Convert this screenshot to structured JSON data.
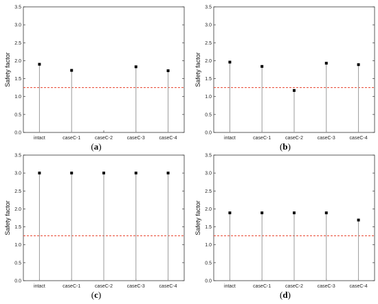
{
  "chart_data": [
    {
      "type": "scatter",
      "panel_label": "(a)",
      "panel_letter": "a",
      "ylabel": "Safety factor",
      "ylim": [
        0.0,
        3.5
      ],
      "yticks": [
        "0.0",
        "0.5",
        "1.0",
        "1.5",
        "2.0",
        "2.5",
        "3.0",
        "3.5"
      ],
      "categories": [
        "intact",
        "caseC-1",
        "caseC-2",
        "caseC-3",
        "caseC-4"
      ],
      "values": [
        1.9,
        1.73,
        null,
        1.83,
        1.72
      ],
      "reference_line": 1.25,
      "reference_color": "#e8412b",
      "marker_color": "#000000",
      "grid": false
    },
    {
      "type": "scatter",
      "panel_label": "(b)",
      "panel_letter": "b",
      "ylabel": "Safety factor",
      "ylim": [
        0.0,
        3.5
      ],
      "yticks": [
        "0.0",
        "0.5",
        "1.0",
        "1.5",
        "2.0",
        "2.5",
        "3.0",
        "3.5"
      ],
      "categories": [
        "intact",
        "caseC-1",
        "caseC-2",
        "caseC-3",
        "caseC-4"
      ],
      "values": [
        1.96,
        1.84,
        1.17,
        1.93,
        1.89
      ],
      "reference_line": 1.25,
      "reference_color": "#e8412b",
      "marker_color": "#000000",
      "grid": false
    },
    {
      "type": "scatter",
      "panel_label": "(c)",
      "panel_letter": "c",
      "ylabel": "Safety factor",
      "ylim": [
        0.0,
        3.5
      ],
      "yticks": [
        "0.0",
        "0.5",
        "1.0",
        "1.5",
        "2.0",
        "2.5",
        "3.0",
        "3.5"
      ],
      "categories": [
        "intact",
        "caseC-1",
        "caseC-2",
        "caseC-3",
        "caseC-4"
      ],
      "values": [
        3.0,
        3.0,
        3.0,
        3.0,
        3.0
      ],
      "reference_line": 1.25,
      "reference_color": "#e8412b",
      "marker_color": "#000000",
      "grid": false
    },
    {
      "type": "scatter",
      "panel_label": "(d)",
      "panel_letter": "d",
      "ylabel": "Safety factor",
      "ylim": [
        0.0,
        3.5
      ],
      "yticks": [
        "0.0",
        "0.5",
        "1.0",
        "1.5",
        "2.0",
        "2.5",
        "3.0",
        "3.5"
      ],
      "categories": [
        "intact",
        "caseC-1",
        "caseC-2",
        "caseC-3",
        "caseC-4"
      ],
      "values": [
        1.89,
        1.89,
        1.89,
        1.89,
        1.69
      ],
      "reference_line": 1.25,
      "reference_color": "#e8412b",
      "marker_color": "#000000",
      "grid": false
    }
  ]
}
